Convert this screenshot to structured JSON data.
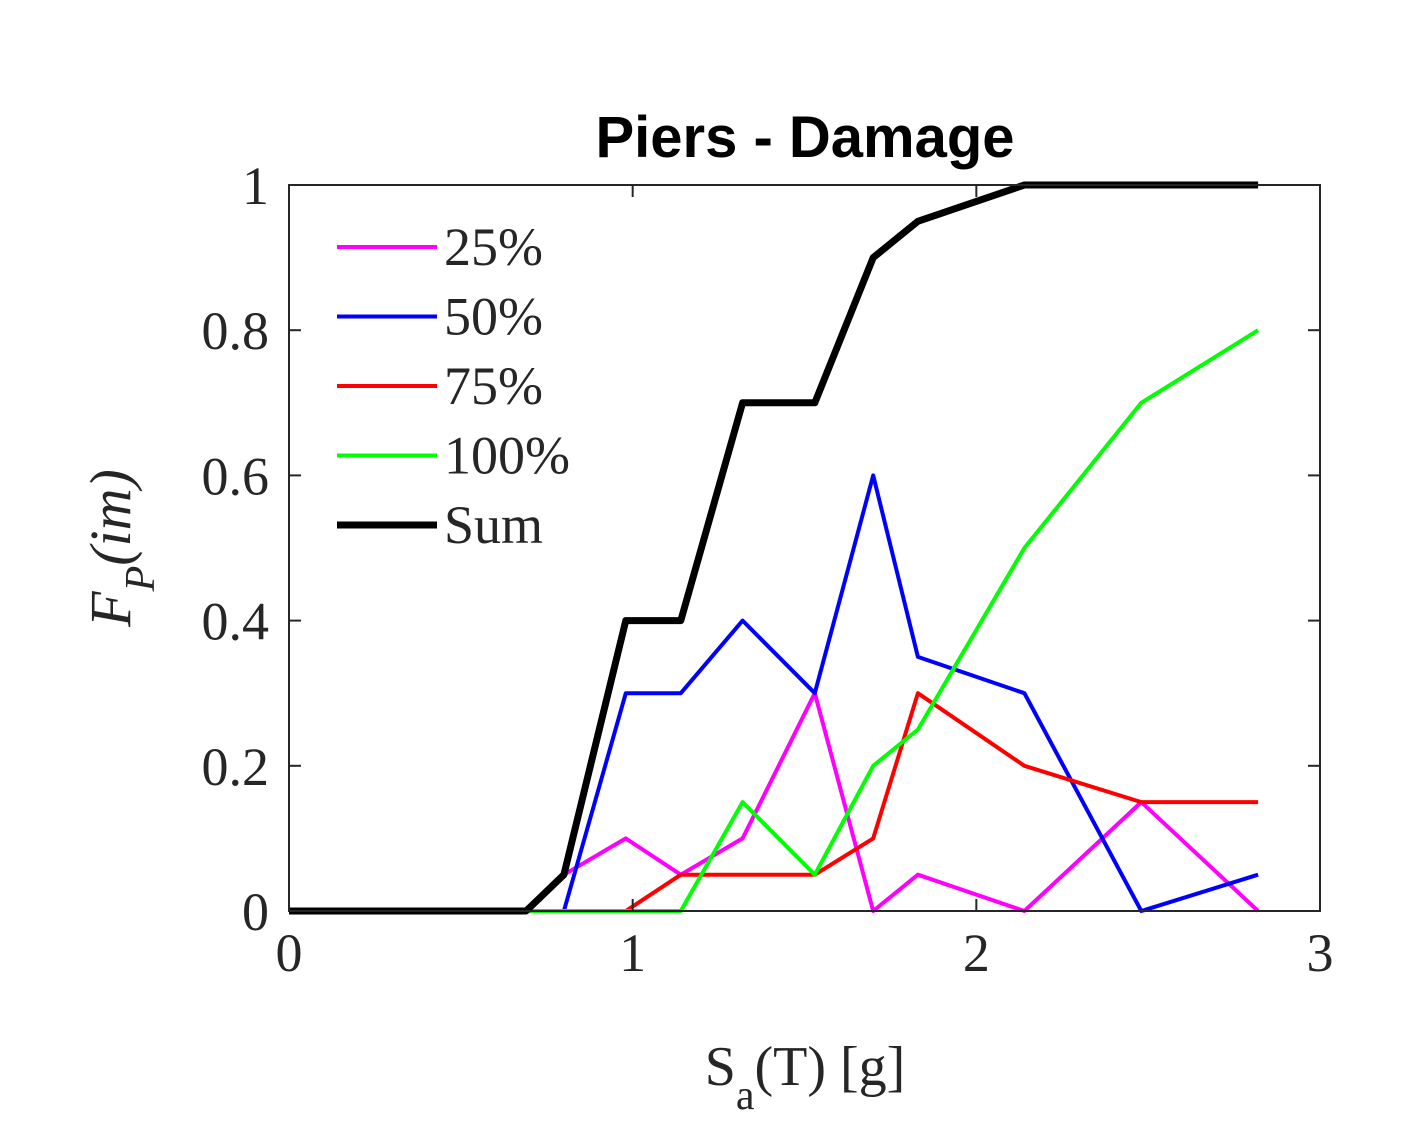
{
  "chart_data": {
    "type": "line",
    "title": "Piers - Damage",
    "xlabel": {
      "main": "S",
      "sub": "a",
      "rest": "(T) [g]"
    },
    "ylabel": {
      "main": "F",
      "sub": "P",
      "rest": "(im)"
    },
    "xlim": [
      0,
      3
    ],
    "ylim": [
      0,
      1
    ],
    "xticks": [
      0,
      1,
      2,
      3
    ],
    "xtick_labels": [
      "0",
      "1",
      "2",
      "3"
    ],
    "yticks": [
      0,
      0.2,
      0.4,
      0.6,
      0.8,
      1
    ],
    "ytick_labels": [
      "0",
      "0.2",
      "0.4",
      "0.6",
      "0.8",
      "1"
    ],
    "grid": false,
    "legend_position": "top-left",
    "series": [
      {
        "name": "25%",
        "color": "#ff00ff",
        "x": [
          0.8,
          0.98,
          1.14,
          1.32,
          1.53,
          1.7,
          1.83,
          2.14,
          2.48,
          2.82
        ],
        "y": [
          0.05,
          0.1,
          0.05,
          0.1,
          0.3,
          0.0,
          0.05,
          0.0,
          0.15,
          0.0
        ]
      },
      {
        "name": "50%",
        "color": "#0000ff",
        "x": [
          0.8,
          0.98,
          1.14,
          1.32,
          1.53,
          1.7,
          1.83,
          2.14,
          2.48,
          2.82
        ],
        "y": [
          0.0,
          0.3,
          0.3,
          0.4,
          0.3,
          0.6,
          0.35,
          0.3,
          0.0,
          0.05
        ]
      },
      {
        "name": "75%",
        "color": "#ff0000",
        "x": [
          0.98,
          1.14,
          1.32,
          1.53,
          1.7,
          1.83,
          2.14,
          2.48,
          2.82
        ],
        "y": [
          0.0,
          0.05,
          0.05,
          0.05,
          0.1,
          0.3,
          0.2,
          0.15,
          0.15
        ]
      },
      {
        "name": "100%",
        "color": "#00ff00",
        "x": [
          0.69,
          0.8,
          0.98,
          1.14,
          1.32,
          1.53,
          1.7,
          1.83,
          2.14,
          2.48,
          2.82
        ],
        "y": [
          0.0,
          0.0,
          0.0,
          0.0,
          0.15,
          0.05,
          0.2,
          0.25,
          0.5,
          0.7,
          0.8
        ]
      },
      {
        "name": "Sum",
        "color": "#000000",
        "x": [
          0.0,
          0.69,
          0.8,
          0.98,
          1.14,
          1.32,
          1.53,
          1.7,
          1.83,
          2.14,
          2.48,
          2.82
        ],
        "y": [
          0.0,
          0.0,
          0.05,
          0.4,
          0.4,
          0.7,
          0.7,
          0.9,
          0.95,
          1.0,
          1.0,
          1.0
        ]
      }
    ]
  }
}
